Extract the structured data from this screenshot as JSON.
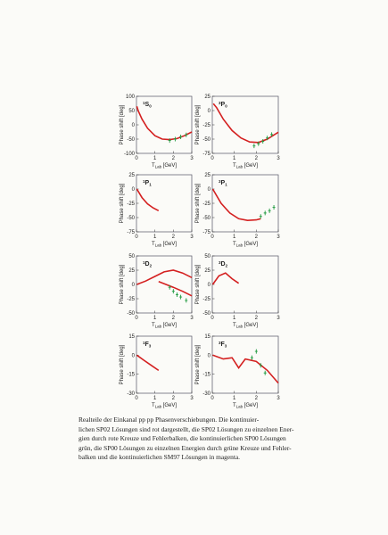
{
  "panels": [
    {
      "label": {
        "sup": "1",
        "letter": "S",
        "sub": "0"
      },
      "ylim": [
        -100,
        100
      ],
      "yticks": [
        -100,
        -50,
        0,
        50,
        100
      ],
      "xlim": [
        0,
        3
      ],
      "xticks": [
        0,
        1,
        2,
        3
      ],
      "y_label": "Phase shift [deg]",
      "x_label": {
        "main": "T",
        "sub": "Lab",
        "unit": "[GeV]"
      },
      "series": [
        {
          "style": "line",
          "color": "#d42020",
          "x": [
            0.02,
            0.1,
            0.3,
            0.6,
            1.0,
            1.4,
            1.8,
            2.2,
            2.6,
            3.0
          ],
          "values": [
            65,
            48,
            20,
            -12,
            -38,
            -50,
            -52,
            -48,
            -38,
            -25
          ]
        },
        {
          "style": "points",
          "color": "#1f9a3f",
          "x": [
            1.8,
            2.1,
            2.4,
            2.7
          ],
          "values": [
            -55,
            -50,
            -42,
            -35
          ]
        }
      ]
    },
    {
      "label": {
        "sup": "3",
        "letter": "P",
        "sub": "0"
      },
      "ylim": [
        -75,
        25
      ],
      "yticks": [
        -75,
        -50,
        -25,
        0,
        25
      ],
      "xlim": [
        0,
        3
      ],
      "xticks": [
        0,
        1,
        2,
        3
      ],
      "y_label": "Phase shift [deg]",
      "x_label": {
        "main": "T",
        "sub": "Lab",
        "unit": "[GeV]"
      },
      "series": [
        {
          "style": "line",
          "color": "#d42020",
          "x": [
            0.05,
            0.2,
            0.5,
            0.9,
            1.3,
            1.7,
            2.1,
            2.5,
            3.0
          ],
          "values": [
            12,
            5,
            -15,
            -35,
            -48,
            -55,
            -56,
            -50,
            -38
          ]
        },
        {
          "style": "points",
          "color": "#1f9a3f",
          "x": [
            1.9,
            2.1,
            2.3,
            2.5,
            2.7
          ],
          "values": [
            -62,
            -58,
            -54,
            -48,
            -42
          ]
        }
      ]
    },
    {
      "label": {
        "sup": "1",
        "letter": "P",
        "sub": "1"
      },
      "ylim": [
        -75,
        25
      ],
      "yticks": [
        -75,
        -50,
        -25,
        0,
        25
      ],
      "xlim": [
        0,
        3
      ],
      "xticks": [
        0,
        1,
        2,
        3
      ],
      "y_label": "Phase shift [deg]",
      "x_label": {
        "main": "T",
        "sub": "Lab",
        "unit": "[GeV]"
      },
      "series": [
        {
          "style": "line",
          "color": "#d42020",
          "x": [
            0.02,
            0.3,
            0.6,
            0.9,
            1.2
          ],
          "values": [
            0,
            -15,
            -26,
            -33,
            -38
          ]
        }
      ]
    },
    {
      "label": {
        "sup": "3",
        "letter": "P",
        "sub": "1"
      },
      "ylim": [
        -75,
        25
      ],
      "yticks": [
        -75,
        -50,
        -25,
        0,
        25
      ],
      "xlim": [
        0,
        3
      ],
      "xticks": [
        0,
        1,
        2,
        3
      ],
      "y_label": "Phase shift [deg]",
      "x_label": {
        "main": "T",
        "sub": "Lab",
        "unit": "[GeV]"
      },
      "series": [
        {
          "style": "line",
          "color": "#d42020",
          "x": [
            0.02,
            0.4,
            0.8,
            1.2,
            1.6,
            2.0,
            2.2
          ],
          "values": [
            0,
            -25,
            -42,
            -52,
            -55,
            -54,
            -52
          ]
        },
        {
          "style": "points",
          "color": "#1f9a3f",
          "x": [
            2.2,
            2.4,
            2.6,
            2.8
          ],
          "values": [
            -48,
            -42,
            -38,
            -32
          ]
        }
      ]
    },
    {
      "label": {
        "sup": "1",
        "letter": "D",
        "sub": "2"
      },
      "ylim": [
        -50,
        50
      ],
      "yticks": [
        -50,
        -25,
        0,
        25,
        50
      ],
      "xlim": [
        0,
        3
      ],
      "xticks": [
        0,
        1,
        2,
        3
      ],
      "y_label": "Phase shift [deg]",
      "x_label": {
        "main": "T",
        "sub": "Lab",
        "unit": "[GeV]"
      },
      "series": [
        {
          "style": "line",
          "color": "#d42020",
          "x": [
            0.02,
            0.5,
            1.0,
            1.5,
            2.0,
            2.5,
            3.0
          ],
          "values": [
            0,
            6,
            14,
            22,
            25,
            20,
            12
          ]
        },
        {
          "style": "line",
          "color": "#d42020",
          "x": [
            1.2,
            1.6,
            2.0,
            2.5,
            3.0
          ],
          "values": [
            5,
            0,
            -5,
            -12,
            -20
          ]
        },
        {
          "style": "points",
          "color": "#1f9a3f",
          "x": [
            1.8,
            2.0,
            2.2,
            2.4,
            2.7
          ],
          "values": [
            -5,
            -12,
            -18,
            -22,
            -28
          ]
        }
      ]
    },
    {
      "label": {
        "sup": "3",
        "letter": "D",
        "sub": "2"
      },
      "ylim": [
        -50,
        50
      ],
      "yticks": [
        -50,
        -25,
        0,
        25,
        50
      ],
      "xlim": [
        0,
        3
      ],
      "xticks": [
        0,
        1,
        2,
        3
      ],
      "y_label": "Phase shift [deg]",
      "x_label": {
        "main": "T",
        "sub": "Lab",
        "unit": "[GeV]"
      },
      "series": [
        {
          "style": "line",
          "color": "#d42020",
          "x": [
            0.02,
            0.3,
            0.6,
            0.9,
            1.2
          ],
          "values": [
            0,
            15,
            20,
            10,
            2
          ]
        }
      ]
    },
    {
      "label": {
        "sup": "1",
        "letter": "F",
        "sub": "3"
      },
      "ylim": [
        -30,
        15
      ],
      "yticks": [
        -30,
        -15,
        0,
        15
      ],
      "xlim": [
        0,
        3
      ],
      "xticks": [
        0,
        1,
        2,
        3
      ],
      "y_label": "Phase shift [deg]",
      "x_label": {
        "main": "T",
        "sub": "Lab",
        "unit": "[GeV]"
      },
      "series": [
        {
          "style": "line",
          "color": "#d42020",
          "x": [
            0.02,
            0.4,
            0.8,
            1.2
          ],
          "values": [
            0,
            -4,
            -8,
            -12
          ]
        }
      ]
    },
    {
      "label": {
        "sup": "3",
        "letter": "F",
        "sub": "3"
      },
      "ylim": [
        -30,
        15
      ],
      "yticks": [
        -30,
        -15,
        0,
        15
      ],
      "xlim": [
        0,
        3
      ],
      "xticks": [
        0,
        1,
        2,
        3
      ],
      "y_label": "Phase shift [deg]",
      "x_label": {
        "main": "T",
        "sub": "Lab",
        "unit": "[GeV]"
      },
      "series": [
        {
          "style": "line",
          "color": "#d42020",
          "x": [
            0.02,
            0.5,
            0.9,
            1.2,
            1.5,
            2.0,
            2.5,
            3.0
          ],
          "values": [
            0,
            -3,
            -2,
            -10,
            -3,
            -5,
            -12,
            -22
          ]
        },
        {
          "style": "points",
          "color": "#1f9a3f",
          "x": [
            1.8,
            2.0,
            2.2,
            2.4
          ],
          "values": [
            -2,
            3,
            -8,
            -14
          ]
        }
      ]
    }
  ],
  "caption": [
    "Realteile der Einkanal pp pp Phasenverschiebungen. Die kontinuier-",
    "lichen SP02 Lösungen sind rot dargestellt, die SP02 Lösungen zu einzelnen Ener-",
    "gien durch rote Kreuze und Fehlerbalken, die kontinuierlichen SP00 Lösungen",
    "grün, die SP00 Lösungen zu einzelnen Energien durch grüne Kreuze und Fehler-",
    "balken und die kontinuierlichen SM97 Lösungen in magenta."
  ]
}
